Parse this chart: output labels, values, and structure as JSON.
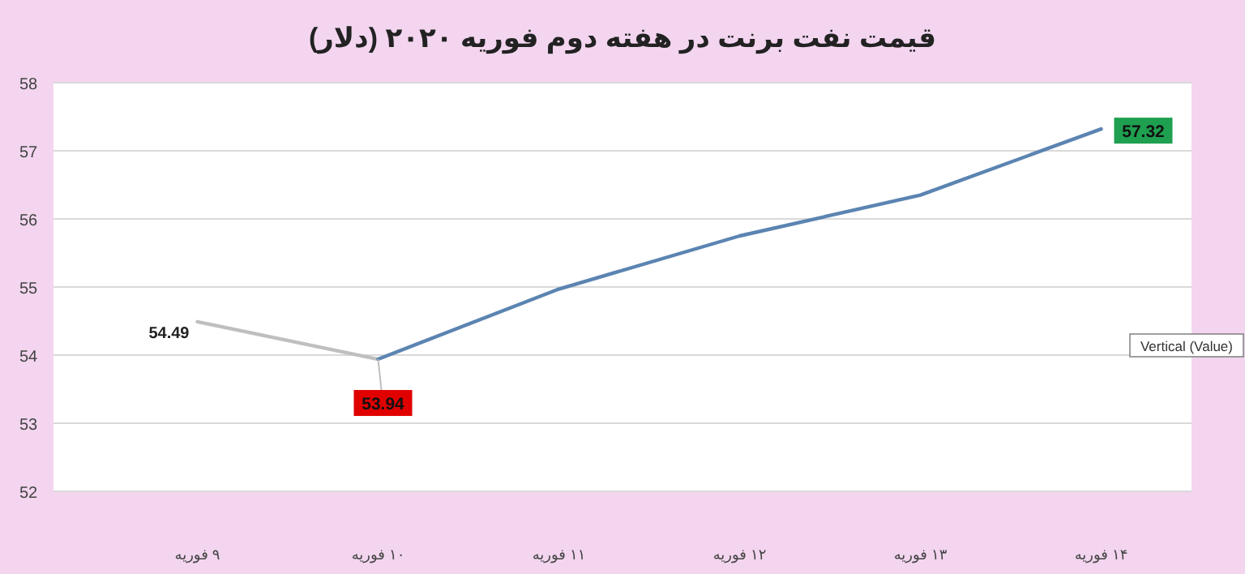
{
  "chart_data": {
    "type": "line",
    "title": "قیمت نفت برنت در هفته دوم فوریه ۲۰۲۰ (دلار)",
    "categories": [
      "۹ فوریه",
      "۱۰ فوریه",
      "۱۱ فوریه",
      "۱۲ فوریه",
      "۱۳ فوریه",
      "۱۴ فوریه"
    ],
    "series": [
      {
        "color": "#bfbfbf",
        "values": [
          54.49,
          53.94,
          null,
          null,
          null,
          null
        ],
        "value_labels": [
          "54.49",
          null,
          null,
          null,
          null,
          null
        ]
      },
      {
        "color": "#5b84b1",
        "values": [
          null,
          53.94,
          54.97,
          55.75,
          56.35,
          57.32
        ],
        "value_labels": [
          null,
          "53.94",
          null,
          null,
          null,
          "57.32"
        ]
      }
    ],
    "ylim": [
      52,
      58
    ],
    "yticks": [
      52,
      53,
      54,
      55,
      56,
      57,
      58
    ],
    "grid": "y",
    "marker": "none",
    "line_style": "solid",
    "annotations": [
      "Vertical (Value)"
    ]
  }
}
